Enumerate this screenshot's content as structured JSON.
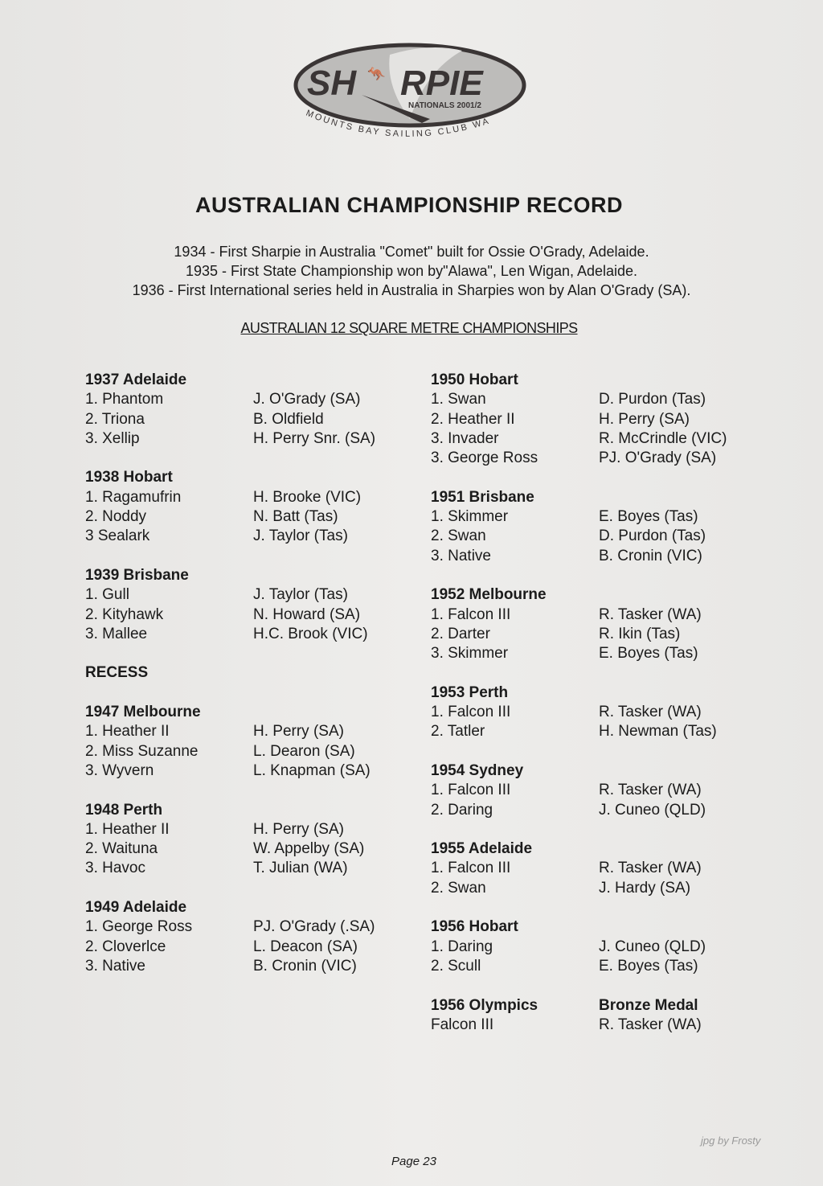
{
  "logo": {
    "brand": "SHARPIE",
    "event": "NATIONALS 2001/2",
    "club": "MOUNTS BAY SAILING CLUB WA"
  },
  "title": "AUSTRALIAN CHAMPIONSHIP RECORD",
  "intro": [
    "1934 - First Sharpie in Australia \"Comet\" built for Ossie O'Grady, Adelaide.",
    "1935 - First State Championship won by\"Alawa\", Len Wigan, Adelaide.",
    "1936 - First International series held in Australia in Sharpies won by Alan O'Grady (SA)."
  ],
  "subtitle": "AUSTRALIAN 12 SQUARE METRE CHAMPIONSHIPS",
  "left": [
    {
      "heading": "1937 Adelaide",
      "rows": [
        [
          "1. Phantom",
          "J. O'Grady (SA)"
        ],
        [
          "2. Triona",
          "B. Oldfield"
        ],
        [
          "3. Xellip",
          "H. Perry Snr. (SA)"
        ]
      ]
    },
    {
      "heading": "1938 Hobart",
      "rows": [
        [
          "1. Ragamufrin",
          "H. Brooke (VIC)"
        ],
        [
          "2. Noddy",
          "N. Batt (Tas)"
        ],
        [
          "3 Sealark",
          "J. Taylor (Tas)"
        ]
      ]
    },
    {
      "heading": "1939 Brisbane",
      "rows": [
        [
          "1. Gull",
          "J. Taylor (Tas)"
        ],
        [
          "2. Kityhawk",
          "N. Howard (SA)"
        ],
        [
          "3. Mallee",
          "H.C. Brook (VIC)"
        ]
      ]
    },
    {
      "heading": "RECESS",
      "rows": []
    },
    {
      "heading": "1947 Melbourne",
      "rows": [
        [
          "1. Heather II",
          "H. Perry (SA)"
        ],
        [
          "2. Miss Suzanne",
          "L. Dearon (SA)"
        ],
        [
          "3. Wyvern",
          "L. Knapman (SA)"
        ]
      ]
    },
    {
      "heading": "1948 Perth",
      "rows": [
        [
          "1. Heather II",
          "H. Perry (SA)"
        ],
        [
          "2. Waituna",
          "W. Appelby (SA)"
        ],
        [
          "3. Havoc",
          "T. Julian (WA)"
        ]
      ]
    },
    {
      "heading": "1949 Adelaide",
      "rows": [
        [
          "1. George Ross",
          "PJ. O'Grady (.SA)"
        ],
        [
          "2. Cloverlce",
          "L. Deacon (SA)"
        ],
        [
          "3. Native",
          "B. Cronin (VIC)"
        ]
      ]
    }
  ],
  "right": [
    {
      "heading": "1950 Hobart",
      "rows": [
        [
          "1. Swan",
          "D. Purdon (Tas)"
        ],
        [
          "2. Heather II",
          "H. Perry (SA)"
        ],
        [
          "3. Invader",
          "R. McCrindle (VIC)"
        ],
        [
          "3. George Ross",
          "PJ. O'Grady (SA)"
        ]
      ]
    },
    {
      "heading": "1951 Brisbane",
      "rows": [
        [
          "1. Skimmer",
          "E. Boyes (Tas)"
        ],
        [
          "2. Swan",
          "D. Purdon (Tas)"
        ],
        [
          "3. Native",
          "B. Cronin (VIC)"
        ]
      ]
    },
    {
      "heading": "1952 Melbourne",
      "rows": [
        [
          "1. Falcon III",
          "R. Tasker (WA)"
        ],
        [
          "2. Darter",
          "R. Ikin (Tas)"
        ],
        [
          "3. Skimmer",
          "E. Boyes (Tas)"
        ]
      ]
    },
    {
      "heading": "1953 Perth",
      "rows": [
        [
          "1. Falcon III",
          "R. Tasker (WA)"
        ],
        [
          "2. Tatler",
          "H. Newman (Tas)"
        ]
      ]
    },
    {
      "heading": "1954 Sydney",
      "rows": [
        [
          "1. Falcon III",
          "R. Tasker (WA)"
        ],
        [
          "2. Daring",
          "J. Cuneo (QLD)"
        ]
      ]
    },
    {
      "heading": "1955 Adelaide",
      "rows": [
        [
          "1. Falcon III",
          "R. Tasker (WA)"
        ],
        [
          "2. Swan",
          "J. Hardy (SA)"
        ]
      ]
    },
    {
      "heading": "1956 Hobart",
      "rows": [
        [
          "1. Daring",
          "J. Cuneo (QLD)"
        ],
        [
          "2. Scull",
          "E. Boyes (Tas)"
        ]
      ]
    },
    {
      "heading": "1956 Olympics",
      "heading2": "Bronze Medal",
      "rows": [
        [
          "Falcon III",
          "R. Tasker (WA)"
        ]
      ]
    }
  ],
  "footer": "Page 23",
  "credit": "jpg by Frosty"
}
